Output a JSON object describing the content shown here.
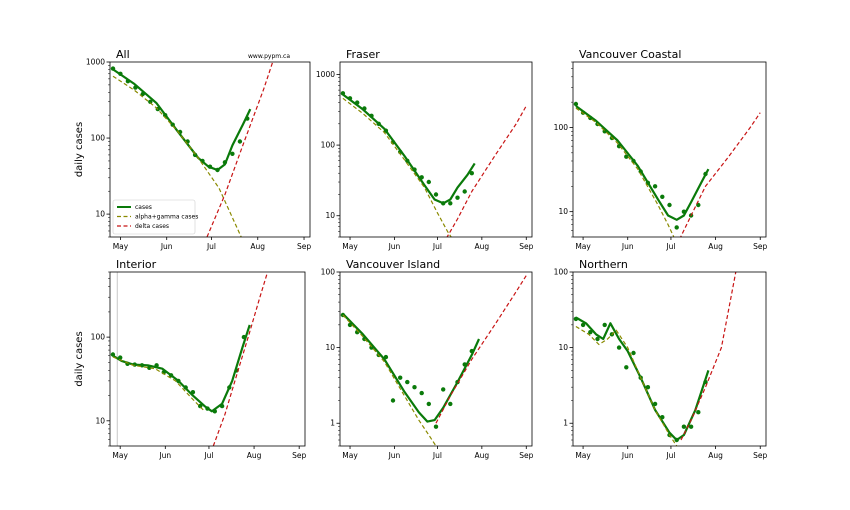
{
  "figure": {
    "watermark": "www.pypm.ca",
    "ylabel": "daily cases",
    "x_tick_labels": [
      "May",
      "Jun",
      "Jul",
      "Aug",
      "Sep"
    ],
    "legend": [
      "cases",
      "alpha+gamma cases",
      "delta cases"
    ],
    "colors": {
      "cases": "#0a7a0a",
      "alpha_gamma": "#8a8a00",
      "delta": "#c81414",
      "points": "#0a7a0a",
      "vline": "#c8c8c8"
    }
  },
  "chart_data": [
    {
      "type": "line",
      "region": "All",
      "yscale": "log",
      "ylim": [
        5,
        1000
      ],
      "xlim": [
        "2021-04-24",
        "2021-09-05"
      ],
      "yticks": [
        10,
        100,
        1000
      ],
      "ytick_labels": [
        "10",
        "100",
        "1000"
      ],
      "series": [
        {
          "name": "cases",
          "x": [
            "2021-04-26",
            "2021-05-10",
            "2021-05-25",
            "2021-06-08",
            "2021-06-22",
            "2021-06-29",
            "2021-07-05",
            "2021-07-10",
            "2021-07-15",
            "2021-07-22",
            "2021-07-27"
          ],
          "y": [
            800,
            520,
            290,
            125,
            55,
            42,
            38,
            45,
            80,
            150,
            240
          ]
        },
        {
          "name": "alpha+gamma cases",
          "x": [
            "2021-04-26",
            "2021-05-10",
            "2021-05-25",
            "2021-06-08",
            "2021-06-22",
            "2021-07-06",
            "2021-07-15",
            "2021-07-22"
          ],
          "y": [
            650,
            430,
            250,
            125,
            55,
            22,
            9,
            4.5
          ]
        },
        {
          "name": "delta cases",
          "x": [
            "2021-06-28",
            "2021-07-10",
            "2021-07-22",
            "2021-08-05",
            "2021-08-11"
          ],
          "y": [
            5,
            18,
            80,
            440,
            1000
          ]
        }
      ],
      "points": {
        "x": [
          "2021-04-26",
          "2021-05-01",
          "2021-05-06",
          "2021-05-11",
          "2021-05-16",
          "2021-05-21",
          "2021-05-26",
          "2021-05-31",
          "2021-06-05",
          "2021-06-10",
          "2021-06-15",
          "2021-06-20",
          "2021-06-25",
          "2021-06-30",
          "2021-07-05",
          "2021-07-10",
          "2021-07-15",
          "2021-07-20",
          "2021-07-25"
        ],
        "y": [
          820,
          700,
          560,
          460,
          380,
          300,
          240,
          200,
          150,
          120,
          90,
          60,
          50,
          42,
          38,
          48,
          62,
          90,
          180
        ]
      }
    },
    {
      "type": "line",
      "region": "Fraser",
      "yscale": "log",
      "ylim": [
        5,
        1500
      ],
      "xlim": [
        "2021-04-24",
        "2021-09-05"
      ],
      "yticks": [
        10,
        100,
        1000
      ],
      "ytick_labels": [
        "10",
        "100",
        "1000"
      ],
      "series": [
        {
          "name": "cases",
          "x": [
            "2021-04-26",
            "2021-05-10",
            "2021-05-25",
            "2021-06-08",
            "2021-06-22",
            "2021-06-29",
            "2021-07-05",
            "2021-07-10",
            "2021-07-15",
            "2021-07-22",
            "2021-07-27"
          ],
          "y": [
            520,
            320,
            170,
            70,
            27,
            17,
            15,
            17,
            25,
            38,
            55
          ]
        },
        {
          "name": "alpha+gamma cases",
          "x": [
            "2021-04-26",
            "2021-05-10",
            "2021-05-25",
            "2021-06-08",
            "2021-06-22",
            "2021-07-01",
            "2021-07-08",
            "2021-07-12"
          ],
          "y": [
            460,
            280,
            150,
            62,
            25,
            11,
            6,
            4.5
          ]
        },
        {
          "name": "delta cases",
          "x": [
            "2021-07-05",
            "2021-07-15",
            "2021-07-25",
            "2021-08-10",
            "2021-08-25",
            "2021-09-01"
          ],
          "y": [
            4,
            9,
            22,
            70,
            200,
            360
          ]
        }
      ],
      "points": {
        "x": [
          "2021-04-26",
          "2021-05-01",
          "2021-05-06",
          "2021-05-11",
          "2021-05-16",
          "2021-05-21",
          "2021-05-26",
          "2021-05-31",
          "2021-06-05",
          "2021-06-10",
          "2021-06-15",
          "2021-06-20",
          "2021-06-25",
          "2021-06-30",
          "2021-07-05",
          "2021-07-10",
          "2021-07-15",
          "2021-07-20",
          "2021-07-25"
        ],
        "y": [
          540,
          460,
          400,
          330,
          260,
          200,
          160,
          110,
          80,
          60,
          45,
          35,
          30,
          20,
          15,
          15,
          18,
          22,
          40
        ]
      }
    },
    {
      "type": "line",
      "region": "Vancouver Coastal",
      "yscale": "log",
      "ylim": [
        5,
        600
      ],
      "xlim": [
        "2021-04-24",
        "2021-09-05"
      ],
      "yticks": [
        10,
        100
      ],
      "ytick_labels": [
        "10",
        "100"
      ],
      "series": [
        {
          "name": "cases",
          "x": [
            "2021-04-26",
            "2021-05-10",
            "2021-05-25",
            "2021-06-08",
            "2021-06-22",
            "2021-06-29",
            "2021-07-05",
            "2021-07-10",
            "2021-07-15",
            "2021-07-22",
            "2021-07-27"
          ],
          "y": [
            180,
            120,
            70,
            35,
            14,
            9,
            8,
            9,
            13,
            22,
            32
          ]
        },
        {
          "name": "alpha+gamma cases",
          "x": [
            "2021-04-26",
            "2021-05-10",
            "2021-05-25",
            "2021-06-08",
            "2021-06-22",
            "2021-06-29",
            "2021-07-03"
          ],
          "y": [
            170,
            115,
            65,
            32,
            12,
            7,
            5
          ]
        },
        {
          "name": "delta cases",
          "x": [
            "2021-07-05",
            "2021-07-15",
            "2021-07-25",
            "2021-08-10",
            "2021-08-25",
            "2021-09-01"
          ],
          "y": [
            4,
            9,
            20,
            45,
            100,
            150
          ]
        }
      ],
      "points": {
        "x": [
          "2021-04-26",
          "2021-05-01",
          "2021-05-06",
          "2021-05-11",
          "2021-05-16",
          "2021-05-21",
          "2021-05-26",
          "2021-05-31",
          "2021-06-05",
          "2021-06-10",
          "2021-06-15",
          "2021-06-20",
          "2021-06-25",
          "2021-06-30",
          "2021-07-05",
          "2021-07-10",
          "2021-07-15",
          "2021-07-20",
          "2021-07-25"
        ],
        "y": [
          190,
          150,
          130,
          110,
          90,
          75,
          60,
          45,
          40,
          30,
          22,
          20,
          15,
          12,
          6.5,
          10,
          9,
          12,
          28
        ]
      }
    },
    {
      "type": "line",
      "region": "Interior",
      "yscale": "log",
      "ylim": [
        5,
        600
      ],
      "xlim": [
        "2021-04-24",
        "2021-09-05"
      ],
      "yticks": [
        10,
        100
      ],
      "ytick_labels": [
        "10",
        "100"
      ],
      "vline": "2021-04-29",
      "series": [
        {
          "name": "cases",
          "x": [
            "2021-04-26",
            "2021-05-02",
            "2021-05-10",
            "2021-05-20",
            "2021-05-30",
            "2021-06-10",
            "2021-06-20",
            "2021-06-28",
            "2021-07-03",
            "2021-07-10",
            "2021-07-17",
            "2021-07-24",
            "2021-07-29"
          ],
          "y": [
            60,
            52,
            47,
            46,
            42,
            30,
            20,
            15,
            13,
            16,
            30,
            75,
            140
          ]
        },
        {
          "name": "alpha+gamma cases",
          "x": [
            "2021-04-26",
            "2021-05-10",
            "2021-05-25",
            "2021-06-08",
            "2021-06-20",
            "2021-06-28"
          ],
          "y": [
            58,
            46,
            42,
            30,
            18,
            13
          ]
        },
        {
          "name": "delta cases",
          "x": [
            "2021-07-04",
            "2021-07-12",
            "2021-07-20",
            "2021-07-28",
            "2021-08-05",
            "2021-08-10"
          ],
          "y": [
            5,
            12,
            35,
            100,
            300,
            580
          ]
        }
      ],
      "points": {
        "x": [
          "2021-04-26",
          "2021-05-01",
          "2021-05-06",
          "2021-05-11",
          "2021-05-16",
          "2021-05-21",
          "2021-05-26",
          "2021-05-31",
          "2021-06-05",
          "2021-06-10",
          "2021-06-15",
          "2021-06-20",
          "2021-06-25",
          "2021-06-30",
          "2021-07-05",
          "2021-07-10",
          "2021-07-15",
          "2021-07-20",
          "2021-07-25"
        ],
        "y": [
          62,
          57,
          48,
          47,
          46,
          43,
          46,
          38,
          35,
          30,
          25,
          22,
          15,
          14,
          13,
          15,
          25,
          40,
          100
        ]
      }
    },
    {
      "type": "line",
      "region": "Vancouver Island",
      "yscale": "log",
      "ylim": [
        0.5,
        100
      ],
      "xlim": [
        "2021-04-24",
        "2021-09-05"
      ],
      "yticks": [
        1,
        10,
        100
      ],
      "ytick_labels": [
        "1",
        "10",
        "100"
      ],
      "series": [
        {
          "name": "cases",
          "x": [
            "2021-04-26",
            "2021-05-10",
            "2021-05-25",
            "2021-06-08",
            "2021-06-18",
            "2021-06-24",
            "2021-06-29",
            "2021-07-05",
            "2021-07-15",
            "2021-07-25",
            "2021-07-30"
          ],
          "y": [
            28,
            15,
            7,
            2.6,
            1.4,
            1.05,
            1.1,
            1.6,
            3.5,
            8,
            13
          ]
        },
        {
          "name": "alpha+gamma cases",
          "x": [
            "2021-04-26",
            "2021-05-10",
            "2021-05-25",
            "2021-06-08",
            "2021-06-18",
            "2021-06-25",
            "2021-06-30"
          ],
          "y": [
            27,
            14,
            6.5,
            2.3,
            1.1,
            0.7,
            0.5
          ]
        },
        {
          "name": "delta cases",
          "x": [
            "2021-06-30",
            "2021-07-10",
            "2021-07-25",
            "2021-08-10",
            "2021-08-25",
            "2021-09-01"
          ],
          "y": [
            1,
            2.3,
            7,
            20,
            55,
            90
          ]
        }
      ],
      "points": {
        "x": [
          "2021-04-26",
          "2021-05-01",
          "2021-05-06",
          "2021-05-11",
          "2021-05-16",
          "2021-05-21",
          "2021-05-26",
          "2021-05-31",
          "2021-06-05",
          "2021-06-10",
          "2021-06-15",
          "2021-06-20",
          "2021-06-25",
          "2021-06-30",
          "2021-07-05",
          "2021-07-10",
          "2021-07-15",
          "2021-07-20",
          "2021-07-25"
        ],
        "y": [
          27,
          20,
          16,
          13,
          10,
          8,
          7.5,
          2,
          4,
          3.5,
          3,
          2.5,
          1.8,
          0.9,
          2.8,
          1.8,
          3.5,
          6,
          9
        ]
      }
    },
    {
      "type": "line",
      "region": "Northern",
      "yscale": "log",
      "ylim": [
        0.5,
        100
      ],
      "xlim": [
        "2021-04-24",
        "2021-09-05"
      ],
      "yticks": [
        1,
        10,
        100
      ],
      "ytick_labels": [
        "1",
        "10",
        "100"
      ],
      "series": [
        {
          "name": "cases",
          "x": [
            "2021-04-26",
            "2021-05-03",
            "2021-05-10",
            "2021-05-15",
            "2021-05-20",
            "2021-05-26",
            "2021-06-01",
            "2021-06-10",
            "2021-06-20",
            "2021-06-30",
            "2021-07-05",
            "2021-07-10",
            "2021-07-18",
            "2021-07-27"
          ],
          "y": [
            25,
            21,
            15,
            13,
            21,
            13,
            9,
            4,
            1.5,
            0.75,
            0.6,
            0.7,
            1.5,
            5
          ]
        },
        {
          "name": "alpha+gamma cases",
          "x": [
            "2021-04-26",
            "2021-05-05",
            "2021-05-12",
            "2021-05-18",
            "2021-05-24",
            "2021-06-01",
            "2021-06-10",
            "2021-06-20",
            "2021-06-30",
            "2021-07-05"
          ],
          "y": [
            19,
            15,
            11,
            13,
            17,
            10,
            4,
            1.5,
            0.7,
            0.5
          ]
        },
        {
          "name": "delta cases",
          "x": [
            "2021-07-08",
            "2021-07-15",
            "2021-07-25",
            "2021-08-05",
            "2021-08-15"
          ],
          "y": [
            0.6,
            1.1,
            3,
            10,
            100
          ]
        }
      ],
      "points": {
        "x": [
          "2021-04-26",
          "2021-05-01",
          "2021-05-06",
          "2021-05-11",
          "2021-05-16",
          "2021-05-21",
          "2021-05-26",
          "2021-05-31",
          "2021-06-05",
          "2021-06-10",
          "2021-06-15",
          "2021-06-20",
          "2021-06-25",
          "2021-06-30",
          "2021-07-05",
          "2021-07-10",
          "2021-07-15",
          "2021-07-20",
          "2021-07-25"
        ],
        "y": [
          24,
          20,
          16,
          13,
          20,
          15,
          10,
          5.5,
          8.5,
          4,
          3,
          1.8,
          1.2,
          0.7,
          0.6,
          0.9,
          0.9,
          1.4,
          3.5
        ]
      }
    }
  ]
}
